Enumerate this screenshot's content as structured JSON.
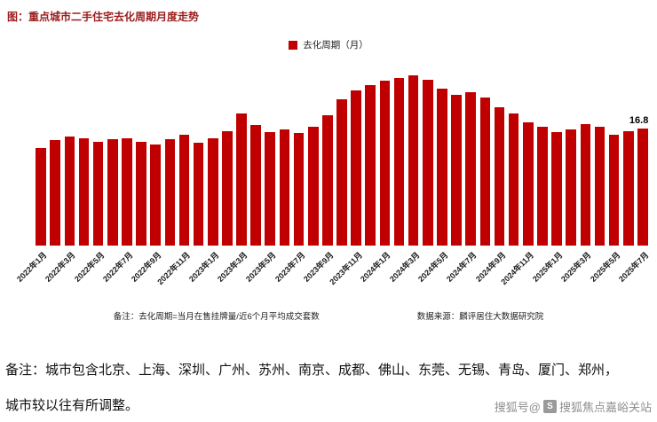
{
  "page": {
    "title": "图：重点城市二手住宅去化周期月度走势",
    "note_line1": "备注：城市包含北京、上海、深圳、广州、苏州、南京、成都、佛山、东莞、无锡、青岛、厦门、郑州，",
    "note_line2": "城市较以往有所调整。",
    "watermark_prefix": "搜狐号@",
    "watermark_name": "搜狐焦点嘉峪关站"
  },
  "icons": {
    "sohu_logo": "S"
  },
  "chart_data": {
    "type": "bar",
    "title": "重点城市二手住宅去化周期月度走势",
    "legend": "去化周期（月）",
    "legend_position": "top",
    "bar_color": "#c00000",
    "title_color": "#9b1c1c",
    "grid": false,
    "xlabel": "",
    "ylabel": "去化周期（月）",
    "ylim": [
      0,
      26
    ],
    "tick_every": 2,
    "categories": [
      "2022年1月",
      "2022年2月",
      "2022年3月",
      "2022年4月",
      "2022年5月",
      "2022年6月",
      "2022年7月",
      "2022年8月",
      "2022年9月",
      "2022年10月",
      "2022年11月",
      "2022年12月",
      "2023年1月",
      "2023年2月",
      "2023年3月",
      "2023年4月",
      "2023年5月",
      "2023年6月",
      "2023年7月",
      "2023年8月",
      "2023年9月",
      "2023年10月",
      "2023年11月",
      "2023年12月",
      "2024年1月",
      "2024年2月",
      "2024年3月",
      "2024年4月",
      "2024年5月",
      "2024年6月",
      "2024年7月",
      "2024年8月",
      "2024年9月",
      "2024年10月",
      "2024年11月",
      "2024年12月",
      "2025年1月",
      "2025年2月",
      "2025年3月",
      "2025年4月",
      "2025年5月",
      "2025年6月",
      "2025年7月"
    ],
    "values": [
      13.9,
      15.1,
      15.6,
      15.3,
      14.9,
      15.2,
      15.4,
      14.8,
      14.4,
      15.2,
      15.8,
      14.7,
      15.3,
      16.4,
      18.9,
      17.3,
      16.2,
      16.6,
      16.1,
      17.0,
      18.6,
      20.9,
      22.2,
      23.0,
      23.6,
      24.0,
      24.3,
      23.7,
      22.4,
      21.6,
      21.9,
      21.2,
      19.8,
      18.9,
      17.6,
      17.0,
      16.2,
      16.6,
      17.4,
      17.0,
      15.9,
      16.3,
      16.8
    ],
    "annotation": {
      "index": 42,
      "label": "16.8"
    },
    "footnote": "备注：去化周期=当月在售挂牌量/近6个月平均成交套数",
    "source": "数据来源：麟评居住大数据研究院"
  }
}
